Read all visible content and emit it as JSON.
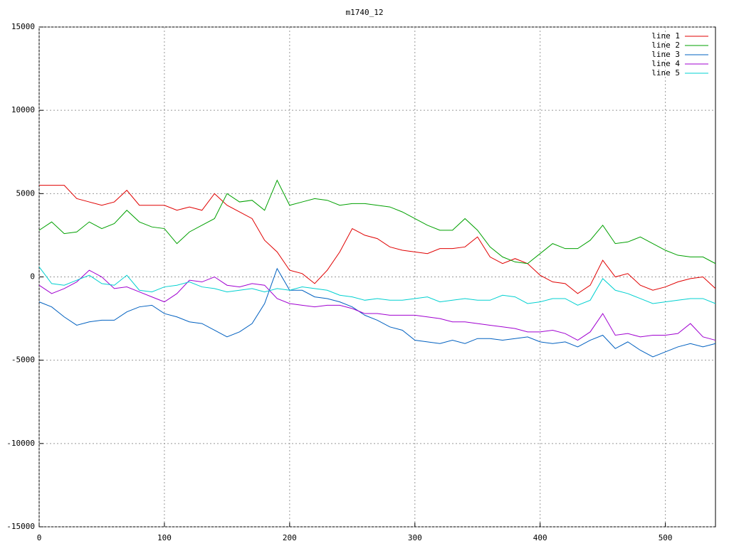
{
  "chart_data": {
    "type": "line",
    "title": "m1740_12",
    "x": [
      0,
      10,
      20,
      30,
      40,
      50,
      60,
      70,
      80,
      90,
      100,
      110,
      120,
      130,
      140,
      150,
      160,
      170,
      180,
      190,
      200,
      210,
      220,
      230,
      240,
      250,
      260,
      270,
      280,
      290,
      300,
      310,
      320,
      330,
      340,
      350,
      360,
      370,
      380,
      390,
      400,
      410,
      420,
      430,
      440,
      450,
      460,
      470,
      480,
      490,
      500,
      510,
      520,
      530,
      540
    ],
    "series": [
      {
        "name": "line 1",
        "color": "#e00000",
        "values": [
          5500,
          5500,
          5500,
          4700,
          4500,
          4300,
          4500,
          5200,
          4300,
          4300,
          4300,
          4000,
          4200,
          4000,
          5000,
          4300,
          3900,
          3500,
          2200,
          1500,
          400,
          200,
          -400,
          400,
          1500,
          2900,
          2500,
          2300,
          1800,
          1600,
          1500,
          1400,
          1700,
          1700,
          1800,
          2400,
          1200,
          800,
          1100,
          800,
          100,
          -300,
          -400,
          -1000,
          -500,
          1000,
          0,
          200,
          -500,
          -800,
          -600,
          -300,
          -100,
          0,
          -700
        ]
      },
      {
        "name": "line 2",
        "color": "#00a000",
        "values": [
          2800,
          3300,
          2600,
          2700,
          3300,
          2900,
          3200,
          4000,
          3300,
          3000,
          2900,
          2000,
          2700,
          3100,
          3500,
          5000,
          4500,
          4600,
          4000,
          5800,
          4300,
          4500,
          4700,
          4600,
          4300,
          4400,
          4400,
          4300,
          4200,
          3900,
          3500,
          3100,
          2800,
          2800,
          3500,
          2800,
          1800,
          1200,
          900,
          800,
          1400,
          2000,
          1700,
          1700,
          2200,
          3100,
          2000,
          2100,
          2400,
          2000,
          1600,
          1300,
          1200,
          1200,
          800
        ]
      },
      {
        "name": "line 3",
        "color": "#0060c0",
        "values": [
          -1500,
          -1800,
          -2400,
          -2900,
          -2700,
          -2600,
          -2600,
          -2100,
          -1800,
          -1700,
          -2200,
          -2400,
          -2700,
          -2800,
          -3200,
          -3600,
          -3300,
          -2800,
          -1600,
          500,
          -800,
          -800,
          -1200,
          -1300,
          -1500,
          -1800,
          -2300,
          -2600,
          -3000,
          -3200,
          -3800,
          -3900,
          -4000,
          -3800,
          -4000,
          -3700,
          -3700,
          -3800,
          -3700,
          -3600,
          -3900,
          -4000,
          -3900,
          -4200,
          -3800,
          -3500,
          -4300,
          -3900,
          -4400,
          -4800,
          -4500,
          -4200,
          -4000,
          -4200,
          -4000
        ]
      },
      {
        "name": "line 4",
        "color": "#a000d0",
        "values": [
          -500,
          -1000,
          -700,
          -300,
          400,
          0,
          -700,
          -600,
          -900,
          -1200,
          -1500,
          -1000,
          -200,
          -300,
          0,
          -500,
          -600,
          -400,
          -500,
          -1300,
          -1600,
          -1700,
          -1800,
          -1700,
          -1700,
          -1900,
          -2200,
          -2200,
          -2300,
          -2300,
          -2300,
          -2400,
          -2500,
          -2700,
          -2700,
          -2800,
          -2900,
          -3000,
          -3100,
          -3300,
          -3300,
          -3200,
          -3400,
          -3800,
          -3300,
          -2200,
          -3500,
          -3400,
          -3600,
          -3500,
          -3500,
          -3400,
          -2800,
          -3600,
          -3800
        ]
      },
      {
        "name": "line 5",
        "color": "#00d0d0",
        "values": [
          600,
          -400,
          -500,
          -200,
          100,
          -400,
          -500,
          100,
          -800,
          -900,
          -600,
          -500,
          -300,
          -600,
          -700,
          -900,
          -800,
          -700,
          -900,
          -700,
          -800,
          -600,
          -700,
          -800,
          -1100,
          -1200,
          -1400,
          -1300,
          -1400,
          -1400,
          -1300,
          -1200,
          -1500,
          -1400,
          -1300,
          -1400,
          -1400,
          -1100,
          -1200,
          -1600,
          -1500,
          -1300,
          -1300,
          -1700,
          -1400,
          -100,
          -800,
          -1000,
          -1300,
          -1600,
          -1500,
          -1400,
          -1300,
          -1300,
          -1600
        ]
      }
    ],
    "xlim": [
      0,
      540
    ],
    "xticks": [
      0,
      100,
      200,
      300,
      400,
      500
    ],
    "ylim": [
      -15000,
      15000
    ],
    "yticks": [
      -15000,
      -10000,
      -5000,
      0,
      5000,
      10000,
      15000
    ],
    "grid": true,
    "legend": "top-right"
  }
}
